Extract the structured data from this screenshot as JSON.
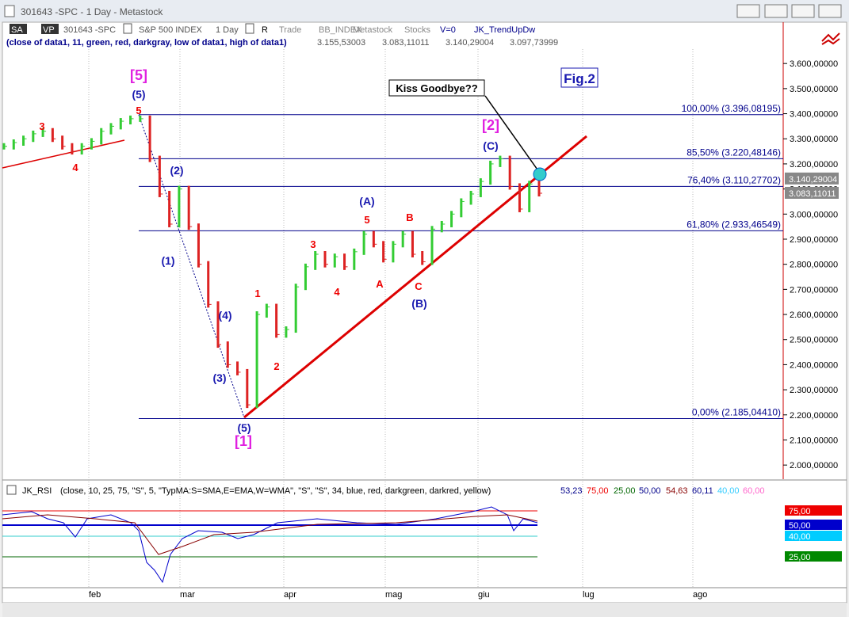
{
  "window": {
    "title": "301643 -SPC - 1 Day - Metastock"
  },
  "toolbar": {
    "sa": "SA",
    "vp": "VP",
    "symbol": "301643 -SPC",
    "index": "S&P 500 INDEX",
    "interval": "1 Day",
    "r": "R",
    "items": [
      "Trade",
      "BB_INDEX",
      "Metastock",
      "Stocks",
      "V=0"
    ],
    "study": "JK_TrendUpDw"
  },
  "indicator_line": {
    "params": "(close of data1, 11, green, red, darkgray, low of data1, high of data1)",
    "values": [
      "3.155,53003",
      "3.083,11011",
      "3.140,29004",
      "3.097,73999"
    ]
  },
  "price_axis": {
    "ylim": [
      1950,
      3670
    ],
    "yticks": [
      {
        "value": 3600,
        "label": "3.600,00000"
      },
      {
        "value": 3500,
        "label": "3.500,00000"
      },
      {
        "value": 3400,
        "label": "3.400,00000"
      },
      {
        "value": 3300,
        "label": "3.300,00000"
      },
      {
        "value": 3200,
        "label": "3.200,00000"
      },
      {
        "value": 3100,
        "label": "3.100,00000"
      },
      {
        "value": 3000,
        "label": "3.000,00000"
      },
      {
        "value": 2900,
        "label": "2.900,00000"
      },
      {
        "value": 2800,
        "label": "2.800,00000"
      },
      {
        "value": 2700,
        "label": "2.700,00000"
      },
      {
        "value": 2600,
        "label": "2.600,00000"
      },
      {
        "value": 2500,
        "label": "2.500,00000"
      },
      {
        "value": 2400,
        "label": "2.400,00000"
      },
      {
        "value": 2300,
        "label": "2.300,00000"
      },
      {
        "value": 2200,
        "label": "2.200,00000"
      },
      {
        "value": 2100,
        "label": "2.100,00000"
      },
      {
        "value": 2000,
        "label": "2.000,00000"
      }
    ],
    "current": [
      {
        "value": 3140.29004,
        "label": "3.140,29004"
      },
      {
        "value": 3083.11011,
        "label": "3.083,11011"
      }
    ]
  },
  "fib": [
    {
      "value": 3396.08195,
      "label": "100,00% (3.396,08195)"
    },
    {
      "value": 3220.48146,
      "label": "85,50% (3.220,48146)"
    },
    {
      "value": 3110.27702,
      "label": "76,40% (3.110,27702)"
    },
    {
      "value": 2933.46549,
      "label": "61,80% (2.933,46549)"
    },
    {
      "value": 2185.0441,
      "label": "0,00% (2.185,04410)"
    }
  ],
  "closes": [
    3270,
    3285,
    3300,
    3320,
    3330,
    3300,
    3270,
    3250,
    3270,
    3290,
    3330,
    3350,
    3370,
    3380,
    3380,
    3220,
    3080,
    2960,
    3100,
    2950,
    2800,
    2640,
    2480,
    2400,
    2370,
    2240,
    2600,
    2630,
    2520,
    2540,
    2710,
    2790,
    2840,
    2800,
    2830,
    2790,
    2850,
    2920,
    2880,
    2820,
    2880,
    2920,
    2840,
    2810,
    2940,
    2960,
    3000,
    3050,
    3080,
    3130,
    3200,
    3220,
    3110,
    3020,
    3120,
    3083
  ],
  "waves": [
    "[5]",
    "(5)",
    "5",
    "3",
    "4",
    "(2)",
    "(1)",
    "(4)",
    "(3)",
    "(5)",
    "[1]",
    "1",
    "2",
    "3",
    "4",
    "(A)",
    "5",
    "A",
    "B",
    "C",
    "(B)",
    "[2]",
    "(C)"
  ],
  "annotations": {
    "callout": "Kiss Goodbye??",
    "figure": "Fig.2"
  },
  "rsi": {
    "name": "JK_RSI",
    "params": "(close, 10, 25, 75, \"S\", 5, \"TypMA:S=SMA,E=EMA,W=WMA\", \"S\", \"S\", 34, blue, red, darkgreen, darkred, yellow)",
    "values": [
      "53,23",
      "75,00",
      "25,00",
      "50,00",
      "54,63",
      "60,11",
      "40,00",
      "60,00"
    ],
    "levels": [
      "75,00",
      "50,00",
      "40,00",
      "25,00"
    ]
  },
  "months": [
    "feb",
    "mar",
    "apr",
    "mag",
    "giu",
    "lug",
    "ago"
  ]
}
